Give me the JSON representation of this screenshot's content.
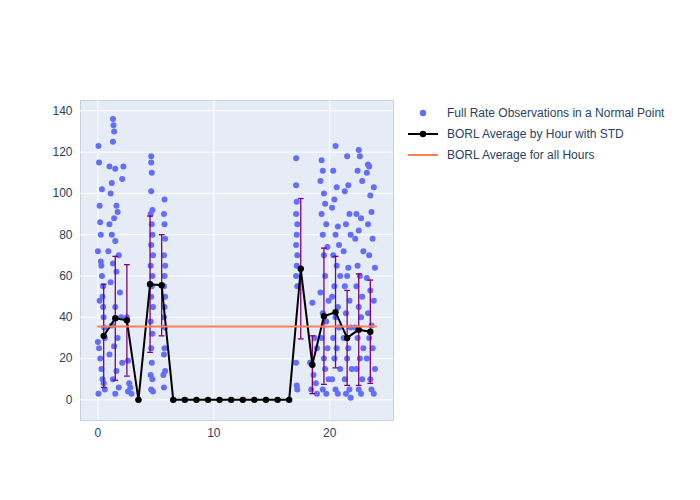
{
  "chart_data": {
    "type": "scatter",
    "xlim": [
      -1.5,
      25.5
    ],
    "xticks": [
      0,
      10,
      20
    ],
    "ylim": [
      -10,
      145
    ],
    "yticks": [
      0,
      20,
      40,
      60,
      80,
      100,
      120,
      140
    ],
    "grid": true,
    "legend": "right",
    "series": [
      {
        "name": "Full Rate Observations in a Normal Point",
        "type": "scatter",
        "color": "#636efa",
        "marker": "circle",
        "x": [
          0.0,
          0.05,
          0.1,
          0.15,
          0.2,
          0.25,
          0.3,
          0.35,
          0.4,
          0.45,
          0.5,
          0.55,
          0.6,
          0.0,
          0.1,
          0.2,
          0.3,
          0.4,
          0.5,
          0.6,
          0.05,
          0.15,
          0.25,
          0.35,
          0.45,
          1.3,
          1.35,
          1.4,
          1.3,
          1.0,
          1.5,
          1.2,
          1.1,
          1.6,
          1.7,
          1.4,
          1.0,
          1.2,
          1.5,
          0.9,
          1.8,
          1.3,
          1.6,
          1.1,
          1.9,
          1.5,
          2.0,
          1.2,
          1.7,
          1.4,
          1.0,
          2.1,
          1.6,
          1.3,
          1.8,
          1.5,
          2.2,
          2.1,
          2.5,
          2.6,
          2.7,
          2.8,
          2.6,
          2.9,
          4.6,
          4.6,
          4.65,
          4.6,
          4.7,
          4.55,
          4.65,
          4.7,
          4.6,
          4.75,
          4.55,
          4.7,
          4.65,
          4.6,
          4.75,
          4.55,
          4.7,
          4.6,
          4.65,
          4.55,
          4.7,
          4.6,
          4.75,
          5.75,
          5.7,
          5.75,
          5.8,
          5.7,
          5.8,
          5.75,
          5.7,
          5.8,
          5.75,
          5.7,
          5.8,
          5.75,
          5.7,
          5.8,
          5.65,
          5.7,
          17.1,
          17.1,
          17.15,
          17.1,
          17.2,
          17.15,
          17.1,
          17.2,
          17.15,
          17.1,
          17.2,
          17.1,
          17.15,
          17.2,
          18.5,
          18.7,
          18.9,
          18.3,
          18.6,
          18.8,
          18.4,
          18.9,
          19.3,
          19.4,
          19.2,
          19.5,
          19.6,
          19.3,
          19.7,
          19.4,
          19.8,
          19.5,
          19.6,
          19.2,
          19.9,
          19.4,
          19.7,
          19.3,
          19.8,
          19.5,
          19.6,
          19.9,
          19.4,
          19.7,
          20.5,
          20.3,
          20.6,
          20.4,
          20.2,
          20.7,
          20.5,
          20.8,
          20.3,
          20.6,
          20.9,
          20.4,
          20.2,
          20.7,
          20.5,
          20.8,
          20.3,
          20.6,
          20.4,
          20.9,
          20.2,
          20.5,
          20.7,
          21.5,
          21.6,
          21.3,
          21.7,
          21.4,
          21.8,
          21.2,
          21.6,
          21.5,
          21.3,
          21.7,
          21.4,
          21.8,
          21.2,
          21.6,
          21.5,
          21.9,
          21.3,
          21.7,
          21.4,
          21.8,
          22.5,
          22.6,
          22.4,
          22.8,
          22.3,
          22.7,
          22.5,
          22.2,
          22.9,
          22.4,
          22.6,
          22.3,
          22.8,
          22.5,
          22.7,
          22.2,
          22.4,
          22.9,
          22.6,
          22.3,
          22.8,
          22.5,
          22.7,
          23.3,
          23.4,
          23.2,
          23.8,
          23.5,
          23.6,
          23.3,
          23.7,
          23.4,
          23.9,
          23.2,
          23.5,
          23.8,
          23.3,
          23.6,
          23.4,
          23.7,
          23.2,
          23.9,
          23.5,
          23.6,
          23.8
        ],
        "values": [
          72,
          123,
          115,
          94,
          86,
          80,
          65,
          60,
          50,
          45,
          40,
          35,
          30,
          28,
          25,
          20,
          15,
          10,
          8,
          5,
          3,
          48,
          67,
          102,
          55,
          136,
          133,
          130,
          125,
          113,
          112,
          105,
          100,
          94,
          91,
          88,
          85,
          80,
          77,
          72,
          70,
          66,
          62,
          57,
          52,
          45,
          40,
          36,
          30,
          26,
          22,
          18,
          14,
          10,
          6,
          3,
          113,
          107,
          40,
          19,
          8,
          6,
          4,
          3,
          118,
          115,
          110,
          101,
          92,
          90,
          85,
          80,
          75,
          70,
          65,
          60,
          55,
          50,
          45,
          38,
          32,
          25,
          18,
          12,
          10,
          5,
          4,
          97,
          90,
          85,
          78,
          70,
          65,
          60,
          55,
          50,
          45,
          40,
          35,
          25,
          22,
          14,
          12,
          6,
          117,
          104,
          96,
          90,
          85,
          80,
          75,
          70,
          65,
          60,
          55,
          18,
          7,
          5,
          47,
          30,
          25,
          18,
          12,
          8,
          5,
          3,
          116,
          111,
          106,
          100,
          95,
          90,
          85,
          80,
          74,
          70,
          60,
          52,
          48,
          42,
          38,
          30,
          25,
          20,
          15,
          10,
          5,
          3,
          123,
          111,
          103,
          97,
          93,
          84,
          80,
          75,
          70,
          65,
          60,
          55,
          50,
          45,
          40,
          35,
          30,
          25,
          20,
          15,
          10,
          5,
          3,
          118,
          104,
          101,
          90,
          85,
          80,
          72,
          64,
          60,
          55,
          48,
          42,
          35,
          30,
          25,
          20,
          15,
          10,
          5,
          3,
          1,
          121,
          118,
          111,
          106,
          90,
          88,
          82,
          78,
          72,
          65,
          60,
          55,
          50,
          45,
          40,
          35,
          30,
          25,
          20,
          15,
          10,
          5,
          3,
          114,
          113,
          110,
          103,
          99,
          91,
          85,
          78,
          70,
          64,
          59,
          53,
          48,
          42,
          36,
          30,
          25,
          20,
          15,
          10,
          5,
          3
        ]
      },
      {
        "name": "BORL Average by Hour with STD",
        "type": "line",
        "color": "#000000",
        "marker": "circle",
        "x": [
          0.5,
          1.5,
          2.5,
          3.5,
          4.5,
          5.5,
          6.5,
          7.5,
          8.5,
          9.5,
          10.5,
          11.5,
          12.5,
          13.5,
          14.5,
          15.5,
          16.5,
          17.5,
          18.5,
          19.5,
          20.5,
          21.5,
          22.5,
          23.5
        ],
        "values": [
          31,
          39.5,
          38.5,
          0,
          56,
          55.5,
          0,
          0,
          0,
          0,
          0,
          0,
          0,
          0,
          0,
          0,
          0,
          63.5,
          17,
          40.5,
          42.5,
          30,
          34,
          33
        ],
        "std": [
          25,
          30,
          27,
          0,
          33,
          24.5,
          0,
          0,
          0,
          0,
          0,
          0,
          0,
          0,
          0,
          0,
          0,
          34,
          14,
          33,
          27,
          23,
          27,
          25
        ]
      },
      {
        "name": "BORL Average for all Hours",
        "type": "line",
        "color": "#ff7f50",
        "x": [
          0,
          24
        ],
        "values": [
          35.5,
          35.5
        ]
      }
    ]
  }
}
